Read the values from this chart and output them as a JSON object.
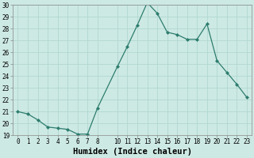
{
  "x": [
    0,
    1,
    2,
    3,
    4,
    5,
    6,
    7,
    8,
    10,
    11,
    12,
    13,
    14,
    15,
    16,
    17,
    18,
    19,
    20,
    21,
    22,
    23
  ],
  "y": [
    21.0,
    20.8,
    20.3,
    19.7,
    19.6,
    19.5,
    19.1,
    19.1,
    21.3,
    24.8,
    26.5,
    28.3,
    30.2,
    29.3,
    27.7,
    27.5,
    27.1,
    27.1,
    28.4,
    25.3,
    24.3,
    23.3,
    22.2
  ],
  "xlabel": "Humidex (Indice chaleur)",
  "ylim": [
    19,
    30
  ],
  "xlim_min": -0.5,
  "xlim_max": 23.5,
  "yticks": [
    19,
    20,
    21,
    22,
    23,
    24,
    25,
    26,
    27,
    28,
    29,
    30
  ],
  "xticks": [
    0,
    1,
    2,
    3,
    4,
    5,
    6,
    7,
    8,
    10,
    11,
    12,
    13,
    14,
    15,
    16,
    17,
    18,
    19,
    20,
    21,
    22,
    23
  ],
  "line_color": "#2d7d6e",
  "marker_color": "#2d7d6e",
  "bg_color": "#cde9e4",
  "grid_color": "#b0d8d0",
  "label_color": "#000000",
  "tick_fontsize": 5.5,
  "xlabel_fontsize": 7.5
}
